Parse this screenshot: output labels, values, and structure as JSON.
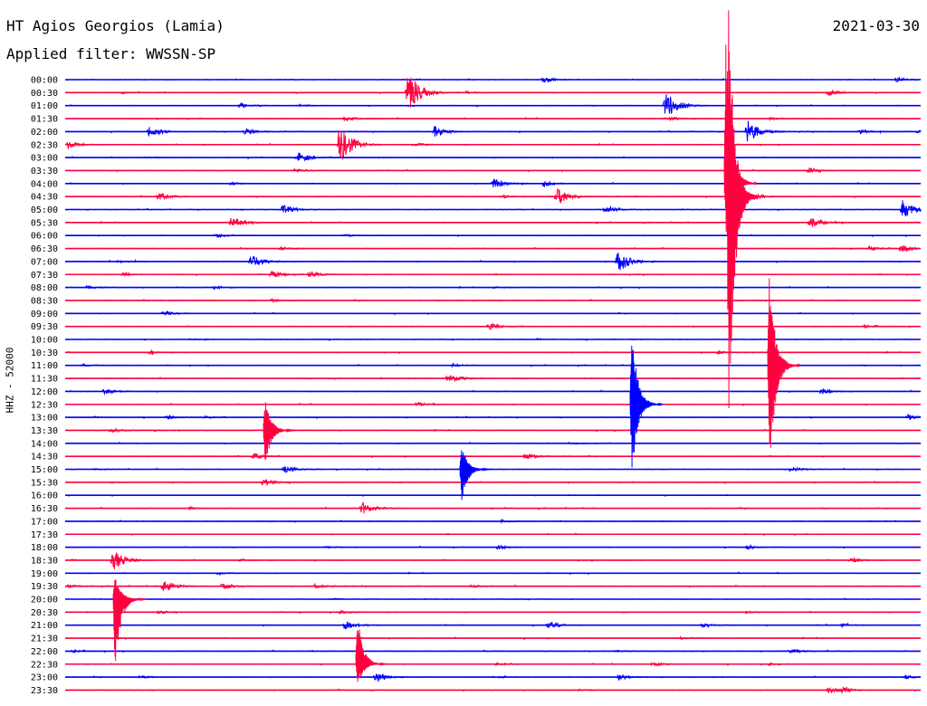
{
  "header": {
    "station": "HT Agios Georgios (Lamia)",
    "filter": "Applied filter: WWSSN-SP",
    "date": "2021-03-30"
  },
  "chart_data": {
    "type": "line",
    "title": "HT Agios Georgios (Lamia)",
    "subtitle": "Applied filter: WWSSN-SP",
    "date": "2021-03-30",
    "ylabel": "HHZ - 52000",
    "line_interval_minutes": 30,
    "colors": {
      "even_trace": "#0000ff",
      "odd_trace": "#ff0040"
    },
    "traces": [
      {
        "time": "00:00",
        "color": "blue",
        "events": [
          [
            600,
            0.5
          ],
          [
            990,
            0.35
          ]
        ]
      },
      {
        "time": "00:30",
        "color": "red",
        "events": [
          [
            450,
            3.6
          ],
          [
            915,
            0.45
          ],
          [
            135,
            0.15
          ],
          [
            515,
            0.2
          ]
        ]
      },
      {
        "time": "01:00",
        "color": "blue",
        "events": [
          [
            265,
            0.35
          ],
          [
            735,
            2.3
          ],
          [
            330,
            0.2
          ]
        ]
      },
      {
        "time": "01:30",
        "color": "red",
        "events": [
          [
            380,
            0.35
          ],
          [
            850,
            0.25
          ],
          [
            740,
            0.3
          ]
        ]
      },
      {
        "time": "02:00",
        "color": "blue",
        "events": [
          [
            165,
            0.9
          ],
          [
            270,
            0.55
          ],
          [
            480,
            0.85
          ],
          [
            825,
            2.0
          ],
          [
            950,
            0.3
          ],
          [
            1012,
            0.25
          ]
        ]
      },
      {
        "time": "02:30",
        "color": "red",
        "events": [
          [
            75,
            0.6
          ],
          [
            375,
            3.3
          ],
          [
            460,
            0.25
          ]
        ]
      },
      {
        "time": "03:00",
        "color": "blue",
        "events": [
          [
            330,
            0.75
          ],
          [
            160,
            0.15
          ]
        ]
      },
      {
        "time": "03:30",
        "color": "red",
        "events": [
          [
            893,
            0.5
          ],
          [
            325,
            0.25
          ]
        ]
      },
      {
        "time": "04:00",
        "color": "blue",
        "events": [
          [
            545,
            0.7
          ],
          [
            600,
            0.45
          ],
          [
            255,
            0.2
          ]
        ]
      },
      {
        "time": "04:30",
        "color": "red",
        "events": [
          [
            175,
            0.65
          ],
          [
            615,
            1.4
          ],
          [
            830,
            0.6
          ],
          [
            555,
            0.25
          ]
        ]
      },
      {
        "time": "05:00",
        "color": "blue",
        "events": [
          [
            312,
            0.7
          ],
          [
            668,
            0.5
          ],
          [
            997,
            1.45
          ]
        ]
      },
      {
        "time": "05:30",
        "color": "red",
        "events": [
          [
            255,
            0.9
          ],
          [
            895,
            0.85
          ]
        ]
      },
      {
        "time": "06:00",
        "color": "blue",
        "events": [
          [
            240,
            0.3
          ],
          [
            380,
            0.2
          ]
        ]
      },
      {
        "time": "06:30",
        "color": "red",
        "events": [
          [
            310,
            0.2
          ],
          [
            995,
            0.6
          ],
          [
            960,
            0.3
          ]
        ]
      },
      {
        "time": "07:00",
        "color": "blue",
        "events": [
          [
            277,
            1.1
          ],
          [
            682,
            1.9
          ],
          [
            130,
            0.2
          ]
        ]
      },
      {
        "time": "07:30",
        "color": "red",
        "events": [
          [
            300,
            0.65
          ],
          [
            340,
            0.55
          ],
          [
            135,
            0.2
          ]
        ]
      },
      {
        "time": "08:00",
        "color": "blue",
        "events": [
          [
            95,
            0.25
          ],
          [
            237,
            0.25
          ],
          [
            545,
            0.15
          ]
        ]
      },
      {
        "time": "08:30",
        "color": "red",
        "events": [
          [
            300,
            0.25
          ]
        ]
      },
      {
        "time": "09:00",
        "color": "blue",
        "events": [
          [
            180,
            0.35
          ]
        ]
      },
      {
        "time": "09:30",
        "color": "red",
        "events": [
          [
            540,
            0.55
          ],
          [
            955,
            0.25
          ]
        ]
      },
      {
        "time": "10:00",
        "color": "blue",
        "events": [
          [
            210,
            0.15
          ]
        ]
      },
      {
        "time": "10:30",
        "color": "red",
        "events": [
          [
            165,
            0.3
          ],
          [
            793,
            0.3
          ]
        ]
      },
      {
        "time": "11:00",
        "color": "blue",
        "events": [
          [
            500,
            0.25
          ],
          [
            92,
            0.2
          ]
        ]
      },
      {
        "time": "11:30",
        "color": "red",
        "events": [
          [
            495,
            0.85
          ]
        ]
      },
      {
        "time": "12:00",
        "color": "blue",
        "events": [
          [
            115,
            0.45
          ],
          [
            908,
            0.45
          ]
        ]
      },
      {
        "time": "12:30",
        "color": "red",
        "events": [
          [
            460,
            0.35
          ]
        ]
      },
      {
        "time": "13:00",
        "color": "blue",
        "events": [
          [
            185,
            0.3
          ],
          [
            225,
            0.2
          ],
          [
            1003,
            0.45
          ]
        ]
      },
      {
        "time": "13:30",
        "color": "red",
        "events": [
          [
            122,
            0.35
          ]
        ]
      },
      {
        "time": "14:00",
        "color": "blue",
        "events": [
          [
            630,
            0.15
          ]
        ]
      },
      {
        "time": "14:30",
        "color": "red",
        "events": [
          [
            280,
            0.45
          ],
          [
            580,
            0.5
          ]
        ]
      },
      {
        "time": "15:00",
        "color": "blue",
        "events": [
          [
            313,
            0.6
          ],
          [
            873,
            0.4
          ],
          [
            103,
            0.15
          ]
        ]
      },
      {
        "time": "15:30",
        "color": "red",
        "events": [
          [
            290,
            0.55
          ]
        ]
      },
      {
        "time": "16:00",
        "color": "blue",
        "events": []
      },
      {
        "time": "16:30",
        "color": "red",
        "events": [
          [
            400,
            0.95
          ],
          [
            210,
            0.2
          ]
        ]
      },
      {
        "time": "17:00",
        "color": "blue",
        "events": [
          [
            553,
            0.2
          ]
        ]
      },
      {
        "time": "17:30",
        "color": "red",
        "events": []
      },
      {
        "time": "18:00",
        "color": "blue",
        "events": [
          [
            550,
            0.35
          ],
          [
            825,
            0.3
          ],
          [
            360,
            0.15
          ]
        ]
      },
      {
        "time": "18:30",
        "color": "red",
        "events": [
          [
            125,
            1.6
          ],
          [
            265,
            0.2
          ],
          [
            940,
            0.35
          ]
        ]
      },
      {
        "time": "19:00",
        "color": "blue",
        "events": [
          [
            240,
            0.15
          ]
        ]
      },
      {
        "time": "19:30",
        "color": "red",
        "events": [
          [
            180,
            1.1
          ],
          [
            245,
            0.5
          ],
          [
            348,
            0.35
          ],
          [
            75,
            0.25
          ],
          [
            520,
            0.2
          ]
        ]
      },
      {
        "time": "20:00",
        "color": "blue",
        "events": [
          [
            365,
            0.15
          ]
        ]
      },
      {
        "time": "20:30",
        "color": "red",
        "events": [
          [
            175,
            0.3
          ],
          [
            375,
            0.2
          ],
          [
            825,
            0.15
          ]
        ]
      },
      {
        "time": "21:00",
        "color": "blue",
        "events": [
          [
            380,
            0.75
          ],
          [
            605,
            0.6
          ],
          [
            775,
            0.3
          ],
          [
            930,
            0.2
          ]
        ]
      },
      {
        "time": "21:30",
        "color": "red",
        "events": [
          [
            750,
            0.2
          ]
        ]
      },
      {
        "time": "22:00",
        "color": "blue",
        "events": [
          [
            873,
            0.4
          ],
          [
            80,
            0.2
          ],
          [
            680,
            0.2
          ]
        ]
      },
      {
        "time": "22:30",
        "color": "red",
        "events": [
          [
            720,
            0.4
          ],
          [
            548,
            0.2
          ],
          [
            850,
            0.2
          ]
        ]
      },
      {
        "time": "23:00",
        "color": "blue",
        "events": [
          [
            415,
            0.75
          ],
          [
            683,
            0.45
          ],
          [
            155,
            0.25
          ],
          [
            1000,
            0.3
          ],
          [
            545,
            0.15
          ]
        ]
      },
      {
        "time": "23:30",
        "color": "red",
        "events": [
          [
            915,
            0.45
          ],
          [
            930,
            0.3
          ],
          [
            640,
            0.15
          ]
        ]
      }
    ],
    "large_events": [
      {
        "trace": "04:30",
        "x": 805,
        "up": 15.0,
        "down": 18.0,
        "color": "red"
      },
      {
        "trace": "04:00",
        "x": 802,
        "up": 11.0,
        "down": 4.5,
        "color": "red"
      },
      {
        "trace": "11:00",
        "x": 850,
        "up": 6.8,
        "down": 8.0,
        "color": "red"
      },
      {
        "trace": "12:30",
        "x": 698,
        "up": 5.7,
        "down": 5.0,
        "color": "blue"
      },
      {
        "trace": "13:30",
        "x": 293,
        "up": 2.4,
        "down": 2.6,
        "color": "red"
      },
      {
        "trace": "15:00",
        "x": 510,
        "up": 1.8,
        "down": 2.5,
        "color": "blue"
      },
      {
        "trace": "20:00",
        "x": 127,
        "up": 1.9,
        "down": 5.4,
        "color": "red"
      },
      {
        "trace": "22:30",
        "x": 395,
        "up": 3.7,
        "down": 1.6,
        "color": "red"
      }
    ]
  }
}
